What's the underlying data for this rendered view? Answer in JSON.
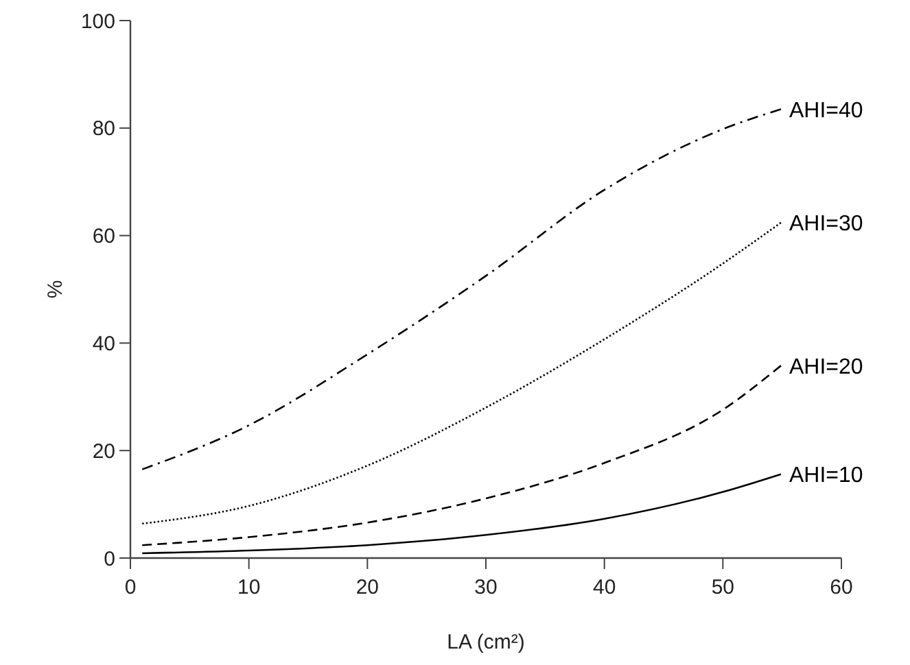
{
  "chart_data": {
    "type": "line",
    "xlabel": "LA (cm²)",
    "ylabel": "%",
    "xlim": [
      0,
      60
    ],
    "xticks": [
      0,
      10,
      20,
      30,
      40,
      50,
      60
    ],
    "ylim": [
      0,
      100
    ],
    "yticks": [
      0,
      20,
      40,
      60,
      80,
      100
    ],
    "grid": false,
    "marker": "none",
    "series": [
      {
        "name": "AHI=10",
        "color": "#000000",
        "line_style": "solid",
        "x": [
          1,
          10,
          20,
          30,
          40,
          50,
          54.9
        ],
        "values": [
          0.9,
          1.4,
          2.4,
          4.3,
          7.3,
          12.3,
          15.6
        ]
      },
      {
        "name": "AHI=20",
        "color": "#000000",
        "line_style": "dashed",
        "x": [
          1,
          10,
          20,
          30,
          40,
          50,
          54.9
        ],
        "values": [
          2.4,
          3.9,
          6.6,
          11.1,
          17.7,
          27.6,
          35.8
        ]
      },
      {
        "name": "AHI=30",
        "color": "#000000",
        "line_style": "dotted",
        "x": [
          1,
          10,
          20,
          30,
          40,
          50,
          54.9
        ],
        "values": [
          6.4,
          9.7,
          17.2,
          28,
          40.7,
          54.8,
          62.4
        ]
      },
      {
        "name": "AHI=40",
        "color": "#000000",
        "line_style": "dashdot",
        "x": [
          1,
          10,
          20,
          30,
          40,
          50,
          54.9
        ],
        "values": [
          16.5,
          24.7,
          37.9,
          52.5,
          68.5,
          79.8,
          83.5
        ]
      }
    ]
  }
}
